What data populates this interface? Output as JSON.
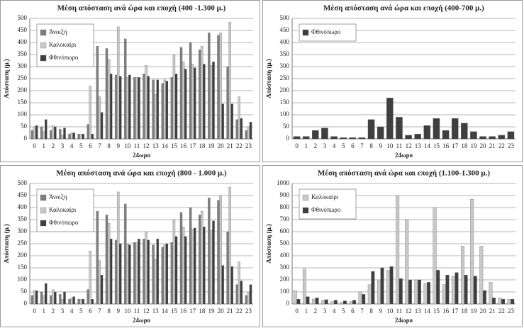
{
  "chart_data": [
    {
      "type": "bar",
      "title": "Μέση απόσταση ανά ώρα και εποχή (400 -1.300 μ.)",
      "y_label": "Απόσταση (μ.)",
      "x_label": "24ωρο",
      "categories": [
        "0",
        "1",
        "2",
        "3",
        "4",
        "5",
        "6",
        "7",
        "8",
        "9",
        "10",
        "11",
        "12",
        "13",
        "14",
        "15",
        "16",
        "17",
        "18",
        "19",
        "20",
        "21",
        "22",
        "23"
      ],
      "ylim": [
        0,
        500
      ],
      "yticks": [
        0,
        50,
        100,
        150,
        200,
        250,
        300,
        350,
        400,
        450,
        500
      ],
      "grid": true,
      "legend": "upper left",
      "series": [
        {
          "name": "Άνοιξη",
          "color": "#7f7f7f",
          "values": [
            35,
            50,
            35,
            40,
            20,
            20,
            60,
            385,
            375,
            265,
            415,
            255,
            270,
            245,
            230,
            255,
            380,
            400,
            370,
            440,
            430,
            300,
            80,
            35
          ]
        },
        {
          "name": "Καλοκαίρι",
          "color": "#c9c9c9",
          "values": [
            50,
            30,
            55,
            15,
            25,
            20,
            220,
            175,
            330,
            465,
            255,
            255,
            305,
            185,
            245,
            350,
            320,
            310,
            385,
            305,
            440,
            485,
            175,
            50
          ]
        },
        {
          "name": "Φθινόπωρο",
          "color": "#3f3f3f",
          "values": [
            55,
            80,
            50,
            45,
            25,
            20,
            20,
            110,
            270,
            260,
            265,
            255,
            260,
            245,
            240,
            270,
            290,
            295,
            310,
            320,
            145,
            145,
            85,
            70
          ]
        }
      ]
    },
    {
      "type": "bar",
      "title": "Μέση απόσταση ανά ώρα και εποχή (400-700 μ.)",
      "y_label": "Απόσταση (μ.)",
      "x_label": "24ωρο",
      "categories": [
        "0",
        "1",
        "2",
        "3",
        "4",
        "5",
        "6",
        "7",
        "8",
        "9",
        "10",
        "11",
        "12",
        "13",
        "14",
        "15",
        "16",
        "17",
        "18",
        "19",
        "20",
        "21",
        "22",
        "23"
      ],
      "ylim": [
        0,
        500
      ],
      "yticks": [
        0,
        50,
        100,
        150,
        200,
        250,
        300,
        350,
        400,
        450,
        500
      ],
      "grid": true,
      "legend": "upper left",
      "series": [
        {
          "name": "Φθινόπωρο",
          "color": "#3f3f3f",
          "values": [
            10,
            10,
            35,
            45,
            10,
            5,
            5,
            5,
            80,
            50,
            170,
            90,
            15,
            20,
            55,
            85,
            35,
            85,
            65,
            30,
            10,
            10,
            15,
            30
          ]
        }
      ]
    },
    {
      "type": "bar",
      "title": "Μέση απόσταση ανά ώρα και εποχή (800 - 1.000 μ.)",
      "y_label": "Απόσταση (μ.)",
      "x_label": "24ωρο",
      "categories": [
        "0",
        "1",
        "2",
        "3",
        "4",
        "5",
        "6",
        "7",
        "8",
        "9",
        "10",
        "11",
        "12",
        "13",
        "14",
        "15",
        "16",
        "17",
        "18",
        "19",
        "20",
        "21",
        "22",
        "23"
      ],
      "ylim": [
        0,
        500
      ],
      "yticks": [
        0,
        50,
        100,
        150,
        200,
        250,
        300,
        350,
        400,
        450,
        500
      ],
      "grid": true,
      "legend": "upper left",
      "series": [
        {
          "name": "Άνοιξη",
          "color": "#7f7f7f",
          "values": [
            35,
            50,
            35,
            40,
            20,
            20,
            60,
            385,
            370,
            265,
            415,
            255,
            270,
            245,
            235,
            255,
            380,
            400,
            370,
            440,
            430,
            300,
            80,
            35
          ]
        },
        {
          "name": "Καλοκαίρι",
          "color": "#c9c9c9",
          "values": [
            55,
            35,
            60,
            20,
            25,
            20,
            220,
            180,
            335,
            465,
            250,
            255,
            300,
            185,
            245,
            350,
            320,
            310,
            385,
            305,
            450,
            485,
            175,
            50
          ]
        },
        {
          "name": "Φθινόπωρο",
          "color": "#3f3f3f",
          "values": [
            55,
            85,
            50,
            50,
            30,
            20,
            20,
            120,
            270,
            250,
            245,
            270,
            265,
            270,
            250,
            280,
            280,
            315,
            320,
            345,
            160,
            155,
            95,
            80
          ]
        }
      ]
    },
    {
      "type": "bar",
      "title": "Μέση απόσταση ανά ώρα και εποχή (1.100-1.300 μ.)",
      "y_label": "Απόσταση (μ.)",
      "x_label": "24ωρο",
      "categories": [
        "0",
        "1",
        "2",
        "3",
        "4",
        "5",
        "6",
        "7",
        "8",
        "9",
        "10",
        "11",
        "12",
        "13",
        "14",
        "15",
        "16",
        "17",
        "18",
        "19",
        "20",
        "21",
        "22",
        "23"
      ],
      "ylim": [
        0,
        1000
      ],
      "yticks": [
        0,
        100,
        200,
        300,
        400,
        500,
        600,
        700,
        800,
        900,
        1000
      ],
      "grid": true,
      "legend": "upper left",
      "series": [
        {
          "name": "Καλοκαίρι",
          "color": "#c9c9c9",
          "values": [
            110,
            290,
            40,
            30,
            20,
            15,
            20,
            100,
            160,
            200,
            280,
            900,
            700,
            200,
            170,
            800,
            160,
            230,
            480,
            870,
            480,
            180,
            50,
            40
          ]
        },
        {
          "name": "Φθινόπωρο",
          "color": "#3f3f3f",
          "values": [
            40,
            60,
            50,
            35,
            30,
            25,
            30,
            80,
            270,
            300,
            310,
            210,
            200,
            200,
            180,
            280,
            240,
            260,
            240,
            230,
            110,
            50,
            40,
            40
          ]
        }
      ]
    }
  ]
}
